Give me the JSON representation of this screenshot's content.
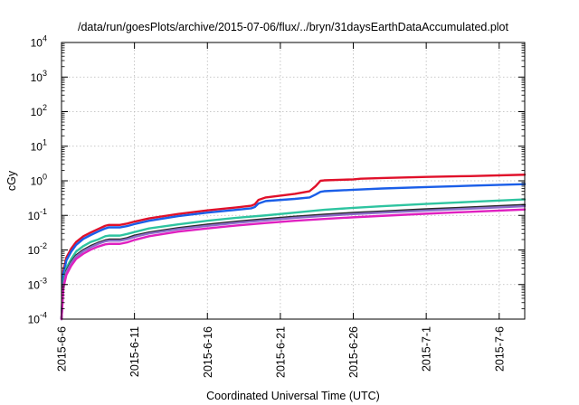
{
  "chart_data": {
    "type": "line",
    "title": "/data/run/goesPlots/archive/2015-07-06/flux/../bryn/31daysEarthDataAccumulated.plot",
    "xlabel": "Coordinated Universal Time (UTC)",
    "ylabel": "cGy",
    "y_scale": "log",
    "ylim": [
      0.0001,
      10000
    ],
    "xlim": [
      "2015-06-06",
      "2015-07-07 18:00"
    ],
    "x_ticks": [
      "2015-6-6",
      "2015-6-11",
      "2015-6-16",
      "2015-6-21",
      "2015-6-26",
      "2015-7-1",
      "2015-7-6"
    ],
    "y_ticks": [
      {
        "value": 0.0001,
        "base": "10",
        "exp": "-4"
      },
      {
        "value": 0.001,
        "base": "10",
        "exp": "-3"
      },
      {
        "value": 0.01,
        "base": "10",
        "exp": "-2"
      },
      {
        "value": 0.1,
        "base": "10",
        "exp": "-1"
      },
      {
        "value": 1,
        "base": "10",
        "exp": "0"
      },
      {
        "value": 10,
        "base": "10",
        "exp": "1"
      },
      {
        "value": 100,
        "base": "10",
        "exp": "2"
      },
      {
        "value": 1000,
        "base": "10",
        "exp": "3"
      },
      {
        "value": 10000,
        "base": "10",
        "exp": "4"
      }
    ],
    "grid": true,
    "series": [
      {
        "color": "#e0102a",
        "x": [
          "2015-06-06 00:00",
          "2015-06-06 03:00",
          "2015-06-06 08:00",
          "2015-06-06 16:00",
          "2015-06-07 00:00",
          "2015-06-07 12:00",
          "2015-06-08 00:00",
          "2015-06-08 12:00",
          "2015-06-09 00:00",
          "2015-06-09 06:00",
          "2015-06-10 00:00",
          "2015-06-10 12:00",
          "2015-06-11 00:00",
          "2015-06-12 00:00",
          "2015-06-14 00:00",
          "2015-06-16 00:00",
          "2015-06-18 00:00",
          "2015-06-19 00:00",
          "2015-06-19 06:00",
          "2015-06-19 12:00",
          "2015-06-20 00:00",
          "2015-06-22 00:00",
          "2015-06-23 00:00",
          "2015-06-23 10:00",
          "2015-06-23 18:00",
          "2015-06-24 00:00",
          "2015-06-26 00:00",
          "2015-06-26 12:00",
          "2015-06-28 00:00",
          "2015-07-01 00:00",
          "2015-07-04 00:00",
          "2015-07-07 18:00"
        ],
        "y": [
          0.0001,
          0.0025,
          0.006,
          0.011,
          0.017,
          0.025,
          0.032,
          0.04,
          0.05,
          0.053,
          0.053,
          0.058,
          0.066,
          0.082,
          0.11,
          0.14,
          0.17,
          0.19,
          0.21,
          0.28,
          0.33,
          0.42,
          0.5,
          0.7,
          1.0,
          1.03,
          1.1,
          1.15,
          1.2,
          1.3,
          1.37,
          1.5
        ]
      },
      {
        "color": "#1a5ee8",
        "x": [
          "2015-06-06 00:00",
          "2015-06-06 03:00",
          "2015-06-06 08:00",
          "2015-06-06 16:00",
          "2015-06-07 00:00",
          "2015-06-07 12:00",
          "2015-06-08 00:00",
          "2015-06-08 12:00",
          "2015-06-09 00:00",
          "2015-06-09 06:00",
          "2015-06-10 00:00",
          "2015-06-10 12:00",
          "2015-06-11 00:00",
          "2015-06-12 00:00",
          "2015-06-14 00:00",
          "2015-06-16 00:00",
          "2015-06-18 00:00",
          "2015-06-19 00:00",
          "2015-06-19 06:00",
          "2015-06-19 12:00",
          "2015-06-20 00:00",
          "2015-06-22 00:00",
          "2015-06-23 00:00",
          "2015-06-23 10:00",
          "2015-06-23 18:00",
          "2015-06-24 00:00",
          "2015-06-26 00:00",
          "2015-06-28 00:00",
          "2015-07-01 00:00",
          "2015-07-04 00:00",
          "2015-07-07 18:00"
        ],
        "y": [
          0.0001,
          0.002,
          0.005,
          0.009,
          0.014,
          0.021,
          0.027,
          0.034,
          0.042,
          0.045,
          0.045,
          0.049,
          0.056,
          0.07,
          0.095,
          0.12,
          0.145,
          0.16,
          0.175,
          0.22,
          0.26,
          0.3,
          0.33,
          0.4,
          0.48,
          0.5,
          0.55,
          0.6,
          0.66,
          0.72,
          0.8
        ]
      },
      {
        "color": "#2ec4a0",
        "x": [
          "2015-06-06 00:00",
          "2015-06-06 03:00",
          "2015-06-06 08:00",
          "2015-06-06 16:00",
          "2015-06-07 00:00",
          "2015-06-07 12:00",
          "2015-06-08 00:00",
          "2015-06-08 12:00",
          "2015-06-09 00:00",
          "2015-06-09 06:00",
          "2015-06-10 00:00",
          "2015-06-10 12:00",
          "2015-06-11 00:00",
          "2015-06-12 00:00",
          "2015-06-14 00:00",
          "2015-06-16 00:00",
          "2015-06-18 00:00",
          "2015-06-20 00:00",
          "2015-06-22 00:00",
          "2015-06-24 00:00",
          "2015-06-26 00:00",
          "2015-06-28 00:00",
          "2015-07-01 00:00",
          "2015-07-04 00:00",
          "2015-07-07 18:00"
        ],
        "y": [
          0.0001,
          0.0012,
          0.003,
          0.0055,
          0.009,
          0.013,
          0.017,
          0.02,
          0.025,
          0.026,
          0.026,
          0.029,
          0.033,
          0.042,
          0.055,
          0.07,
          0.085,
          0.1,
          0.12,
          0.145,
          0.165,
          0.185,
          0.215,
          0.245,
          0.29
        ]
      },
      {
        "color": "#2a2a2a",
        "x": [
          "2015-06-06 00:00",
          "2015-06-06 03:00",
          "2015-06-06 08:00",
          "2015-06-06 16:00",
          "2015-06-07 00:00",
          "2015-06-07 12:00",
          "2015-06-08 00:00",
          "2015-06-08 12:00",
          "2015-06-09 00:00",
          "2015-06-09 06:00",
          "2015-06-10 00:00",
          "2015-06-10 12:00",
          "2015-06-11 00:00",
          "2015-06-12 00:00",
          "2015-06-14 00:00",
          "2015-06-16 00:00",
          "2015-06-18 00:00",
          "2015-06-20 00:00",
          "2015-06-22 00:00",
          "2015-06-24 00:00",
          "2015-06-26 00:00",
          "2015-06-28 00:00",
          "2015-07-01 00:00",
          "2015-07-04 00:00",
          "2015-07-07 18:00"
        ],
        "y": [
          0.0001,
          0.001,
          0.0025,
          0.0045,
          0.007,
          0.01,
          0.013,
          0.016,
          0.019,
          0.02,
          0.02,
          0.022,
          0.026,
          0.032,
          0.043,
          0.054,
          0.066,
          0.078,
          0.092,
          0.105,
          0.118,
          0.13,
          0.15,
          0.17,
          0.2
        ]
      },
      {
        "color": "#8a6cc8",
        "x": [
          "2015-06-06 00:00",
          "2015-06-06 03:00",
          "2015-06-06 08:00",
          "2015-06-06 16:00",
          "2015-06-07 00:00",
          "2015-06-07 12:00",
          "2015-06-08 00:00",
          "2015-06-08 12:00",
          "2015-06-09 00:00",
          "2015-06-09 06:00",
          "2015-06-10 00:00",
          "2015-06-10 12:00",
          "2015-06-11 00:00",
          "2015-06-12 00:00",
          "2015-06-14 00:00",
          "2015-06-16 00:00",
          "2015-06-18 00:00",
          "2015-06-20 00:00",
          "2015-06-22 00:00",
          "2015-06-24 00:00",
          "2015-06-26 00:00",
          "2015-06-28 00:00",
          "2015-07-01 00:00",
          "2015-07-04 00:00",
          "2015-07-07 18:00"
        ],
        "y": [
          0.0001,
          0.00095,
          0.0023,
          0.0042,
          0.0065,
          0.0093,
          0.012,
          0.015,
          0.0178,
          0.0186,
          0.0186,
          0.0205,
          0.024,
          0.03,
          0.04,
          0.05,
          0.061,
          0.072,
          0.085,
          0.097,
          0.109,
          0.12,
          0.138,
          0.157,
          0.185
        ]
      },
      {
        "color": "#e020c0",
        "x": [
          "2015-06-06 00:00",
          "2015-06-06 03:00",
          "2015-06-06 08:00",
          "2015-06-06 16:00",
          "2015-06-07 00:00",
          "2015-06-07 12:00",
          "2015-06-08 00:00",
          "2015-06-08 12:00",
          "2015-06-09 00:00",
          "2015-06-09 06:00",
          "2015-06-10 00:00",
          "2015-06-10 12:00",
          "2015-06-11 00:00",
          "2015-06-12 00:00",
          "2015-06-14 00:00",
          "2015-06-16 00:00",
          "2015-06-18 00:00",
          "2015-06-20 00:00",
          "2015-06-22 00:00",
          "2015-06-24 00:00",
          "2015-06-26 00:00",
          "2015-06-28 00:00",
          "2015-07-01 00:00",
          "2015-07-04 00:00",
          "2015-07-07 18:00"
        ],
        "y": [
          0.0001,
          0.0008,
          0.0019,
          0.0035,
          0.0055,
          0.0078,
          0.0102,
          0.0125,
          0.0145,
          0.015,
          0.015,
          0.0166,
          0.0195,
          0.025,
          0.034,
          0.042,
          0.051,
          0.06,
          0.07,
          0.079,
          0.088,
          0.097,
          0.112,
          0.127,
          0.148
        ]
      }
    ]
  }
}
